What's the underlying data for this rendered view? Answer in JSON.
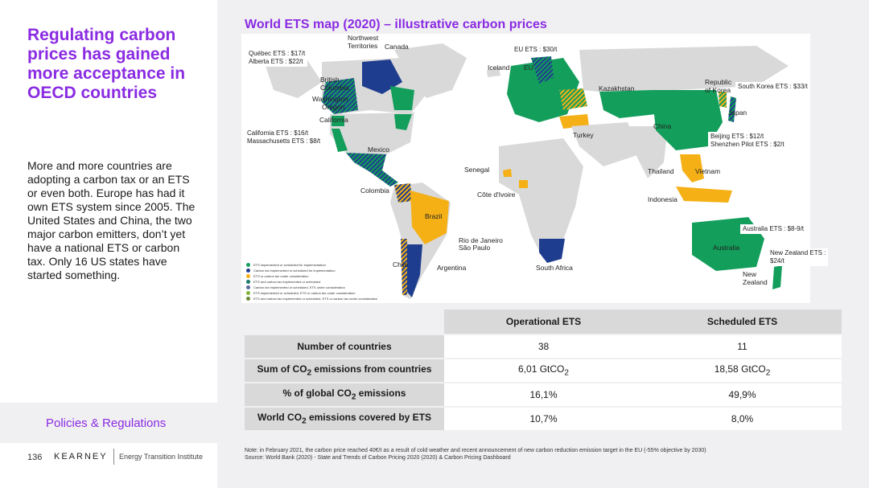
{
  "colors": {
    "accent": "#8a2be2",
    "ets": "#139e5b",
    "carbon_tax": "#1f3d8f",
    "under_consideration": "#f5b016",
    "land_other": "#d9d9d9",
    "panel_bg": "#f0f0f2"
  },
  "left": {
    "title": "Regulating carbon prices has gained more acceptance in OECD countries",
    "body": "More and more countries are adopting a carbon tax or an ETS or even both. Europe has had it own ETS system since 2005. The United States and China, the two major carbon emitters, don’t yet have a national ETS or carbon tax. Only 16 US states have started something.",
    "section": "Policies & Regulations",
    "page_number": "136",
    "brand": "KEARNEY",
    "institute": "Energy Transition Institute"
  },
  "map": {
    "title": "World ETS map (2020) – illustrative carbon prices",
    "region_labels": {
      "nwt": "Northwest\nTerritories",
      "canada": "Canada",
      "bc": "British\nColumbia",
      "washington": "Washington",
      "oregon": "Oregon",
      "california": "California",
      "mexico": "Mexico",
      "colombia": "Colombia",
      "brazil": "Brazil",
      "rio": "Rio de Janeiro",
      "saopaulo": "São Paulo",
      "chile": "Chile",
      "argentina": "Argentina",
      "iceland": "Iceland",
      "eu": "EU",
      "senegal": "Senegal",
      "cotedivoire": "Côte d'Ivoire",
      "southafrica": "South Africa",
      "turkey": "Turkey",
      "kazakhstan": "Kazakhstan",
      "china": "China",
      "korea": "Republic\nof Korea",
      "japan": "Japan",
      "thailand": "Thailand",
      "vietnam": "Vietnam",
      "indonesia": "Indonesia",
      "australia": "Australia",
      "newzealand": "New\nZealand"
    },
    "price_labels": {
      "quebec": "Québec ETS : $17/t\nAlberta ETS : $22/t",
      "california": "California ETS : $16/t\nMassachusetts ETS : $8/t",
      "eu": "EU ETS : $30/t",
      "korea": "South Korea ETS : $33/t",
      "beijing": "Beijing ETS : $12/t\nShenzhen Pilot ETS : $2/t",
      "australia": "Australia ETS : $8-9/t",
      "newzealand": "New Zealand ETS :\n$24/t"
    },
    "legend": [
      {
        "color": "#139e5b",
        "text": "ETS implemented or scheduled for implementation"
      },
      {
        "color": "#1f3d8f",
        "text": "Carbon tax implemented or scheduled for implementation"
      },
      {
        "color": "#f5b016",
        "text": "ETS or carbon tax under consideration"
      },
      {
        "color": "#1a7a6a",
        "text": "ETS and carbon tax implemented or scheduled"
      },
      {
        "color": "#5a6a9a",
        "text": "Carbon tax implemented or scheduled, ETS under consideration"
      },
      {
        "color": "#7fb53a",
        "text": "ETS implemented or scheduled, ETS or carbon tax under consideration"
      },
      {
        "color": "#6a8a3a",
        "text": "ETS and carbon tax implemented or scheduled, ETS or carbon tax under consideration"
      }
    ]
  },
  "table": {
    "headers": [
      "",
      "Operational ETS",
      "Scheduled ETS"
    ],
    "rows": [
      {
        "label": "Number of countries",
        "operational": "38",
        "scheduled": "11"
      },
      {
        "label_pre": "Sum of CO",
        "label_sub": "2",
        "label_post": " emissions from countries",
        "operational_pre": "6,01 GtCO",
        "operational_sub": "2",
        "scheduled_pre": "18,58 GtCO",
        "scheduled_sub": "2"
      },
      {
        "label_pre": "% of global CO",
        "label_sub": "2",
        "label_post": " emissions",
        "operational": "16,1%",
        "scheduled": "49,9%"
      },
      {
        "label_pre": "World CO",
        "label_sub": "2",
        "label_post": " emissions covered by ETS",
        "operational": "10,7%",
        "scheduled": "8,0%"
      }
    ]
  },
  "note": "Note: in February 2021, the carbon price reached 40€/t as a result of cold weather and recent announcement of new carbon reduction emission target in the EU (-55% objective by 2030)",
  "source": "Source: World Bank (2020) - State and Trends of Carbon Pricing 2020 (2020) & Carbon Pricing Dashboard"
}
